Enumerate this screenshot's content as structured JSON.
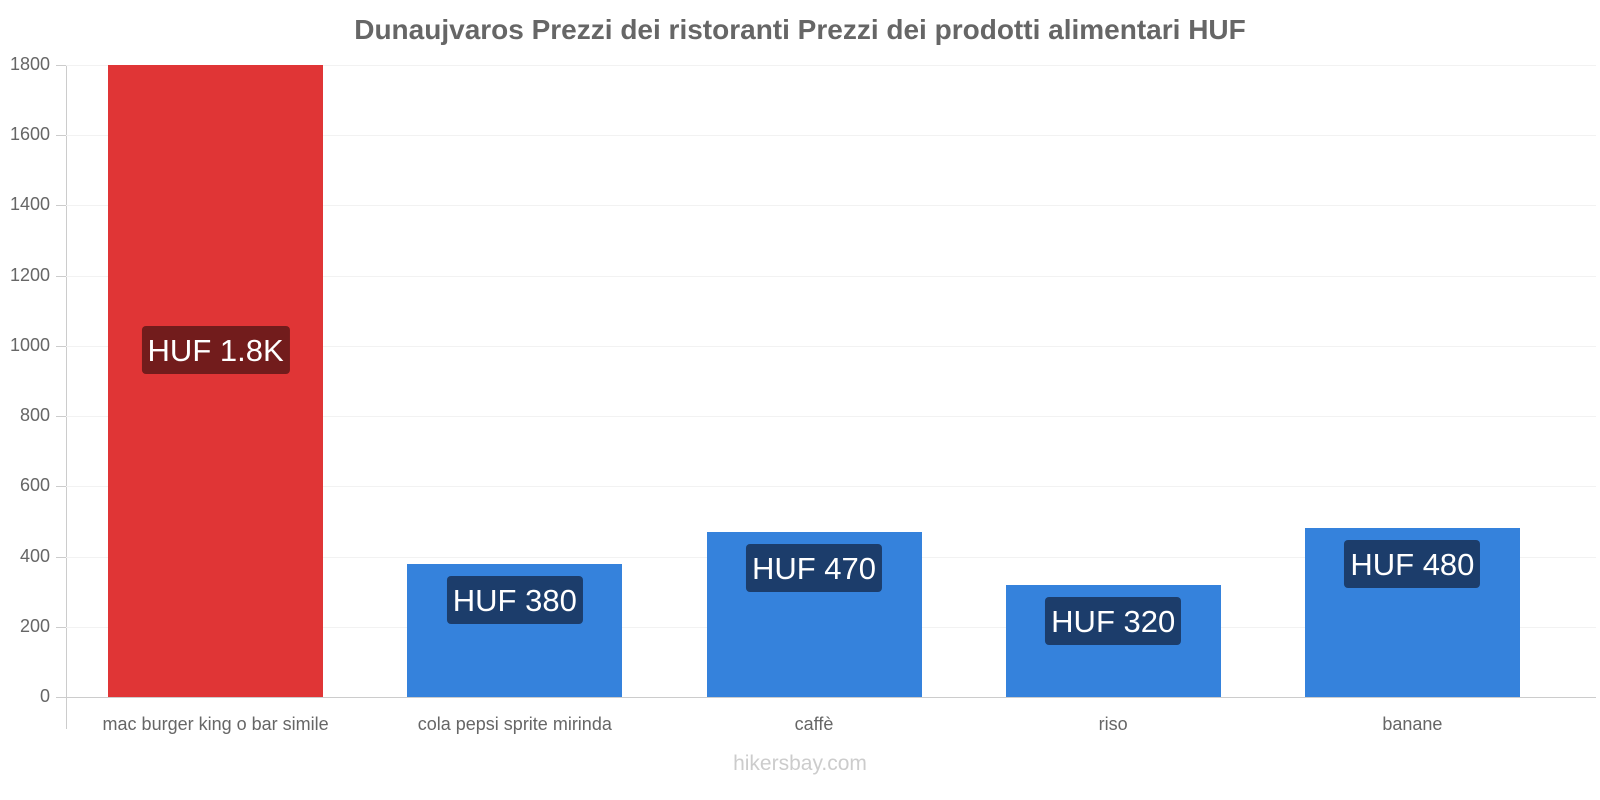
{
  "chart_data": {
    "type": "bar",
    "title": "Dunaujvaros Prezzi dei ristoranti Prezzi dei prodotti alimentari HUF",
    "xlabel": "",
    "ylabel": "",
    "ylim": [
      0,
      1800
    ],
    "yticks": [
      "0",
      "200",
      "400",
      "600",
      "800",
      "1000",
      "1200",
      "1400",
      "1600",
      "1800"
    ],
    "categories": [
      "mac burger king o bar simile",
      "cola pepsi sprite mirinda",
      "caffè",
      "riso",
      "banane"
    ],
    "values": [
      1800,
      380,
      470,
      320,
      480
    ],
    "data_labels": [
      "HUF 1.8K",
      "HUF 380",
      "HUF 470",
      "HUF 320",
      "HUF 480"
    ],
    "bar_colors": [
      "#e03536",
      "#3582dc",
      "#3582dc",
      "#3582dc",
      "#3582dc"
    ],
    "label_bg_colors": [
      "#721c1c",
      "#1c3d6b",
      "#1c3d6b",
      "#1c3d6b",
      "#1c3d6b"
    ],
    "grid": true,
    "legend": null
  },
  "footer": {
    "watermark": "hikersbay.com"
  }
}
